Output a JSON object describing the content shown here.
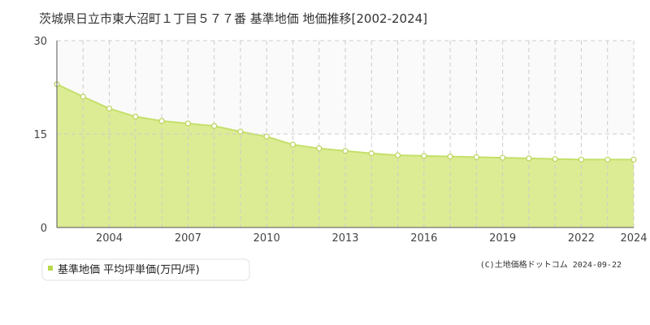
{
  "chart_data": {
    "type": "area",
    "title": "茨城県日立市東大沼町１丁目５７７番 基準地価 地価推移[2002-2024]",
    "x": [
      2002,
      2003,
      2004,
      2005,
      2006,
      2007,
      2008,
      2009,
      2010,
      2011,
      2012,
      2013,
      2014,
      2015,
      2016,
      2017,
      2018,
      2019,
      2020,
      2021,
      2022,
      2023,
      2024
    ],
    "series": [
      {
        "name": "基準地価 平均坪単価(万円/坪)",
        "values": [
          23.0,
          21.0,
          19.1,
          17.8,
          17.1,
          16.7,
          16.3,
          15.4,
          14.6,
          13.3,
          12.7,
          12.3,
          11.9,
          11.6,
          11.5,
          11.4,
          11.3,
          11.2,
          11.1,
          11.0,
          10.9,
          10.9,
          10.9
        ]
      }
    ],
    "xticks": [
      "2004",
      "2007",
      "2010",
      "2013",
      "2016",
      "2019",
      "2022",
      "2024"
    ],
    "yticks": [
      "0",
      "15",
      "30"
    ],
    "ylim": [
      0,
      30
    ],
    "xlabel": "",
    "ylabel": "",
    "grid": true,
    "legend": "bottom-left",
    "colors": {
      "line": "#c4e06a",
      "fill": "#dcec94",
      "marker_stroke": "#b9d45a",
      "legend_marker": "#b9d84a"
    }
  },
  "credit": "(C)土地価格ドットコム 2024-09-22"
}
